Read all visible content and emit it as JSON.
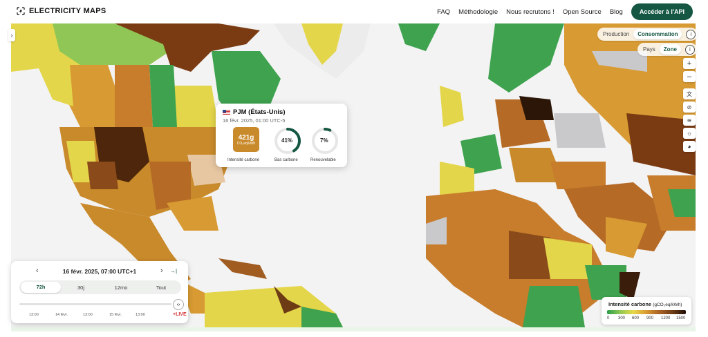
{
  "app": {
    "brand": "ELECTRICITY MAPS",
    "nav": [
      "FAQ",
      "Méthodologie",
      "Nous recrutons !",
      "Open Source",
      "Blog"
    ],
    "cta": "Accéder à l'API"
  },
  "map_controls": {
    "production_label": "Production",
    "production_selected": "Consommation",
    "country_label": "Pays",
    "country_selected": "Zone",
    "info_icon": "i",
    "zoom_in": "+",
    "zoom_out": "–"
  },
  "tooltip": {
    "zone": "PJM (États-Unis)",
    "time": "16 févr. 2025, 01:00 UTC-5",
    "carbon_value": "421g",
    "carbon_unit": "CO₂eq/kWh",
    "carbon_label": "Intensité carbone",
    "low_carbon_pct": "41%",
    "low_carbon_label": "Bas carbone",
    "renewable_pct": "7%",
    "renewable_label": "Renouvelable",
    "low_carbon_fraction": 0.41,
    "renewable_fraction": 0.07
  },
  "timecard": {
    "date": "16 févr. 2025, 07:00 UTC+1",
    "prev": "‹",
    "next": "›",
    "latest": "→|",
    "tabs": [
      "72h",
      "30j",
      "12mo",
      "Tout"
    ],
    "active_tab": "72h",
    "ticks": [
      "13:00",
      "14 févr.",
      "13:00",
      "15 févr.",
      "13:00"
    ],
    "live": "+LIVE",
    "handle": "‹›"
  },
  "legend": {
    "title": "Intensité carbone",
    "unit": "(gCO₂eq/kWh)",
    "ticks": [
      "0",
      "300",
      "600",
      "900",
      "1200",
      "1500"
    ]
  },
  "colors": {
    "accent": "#155742",
    "green": "#3ea24f",
    "light_green": "#8fc655",
    "yellow": "#e4d64a",
    "orange": "#cf8f30",
    "brown": "#a15c22",
    "dark_brown": "#4d260b",
    "grey": "#c9c9cc"
  }
}
